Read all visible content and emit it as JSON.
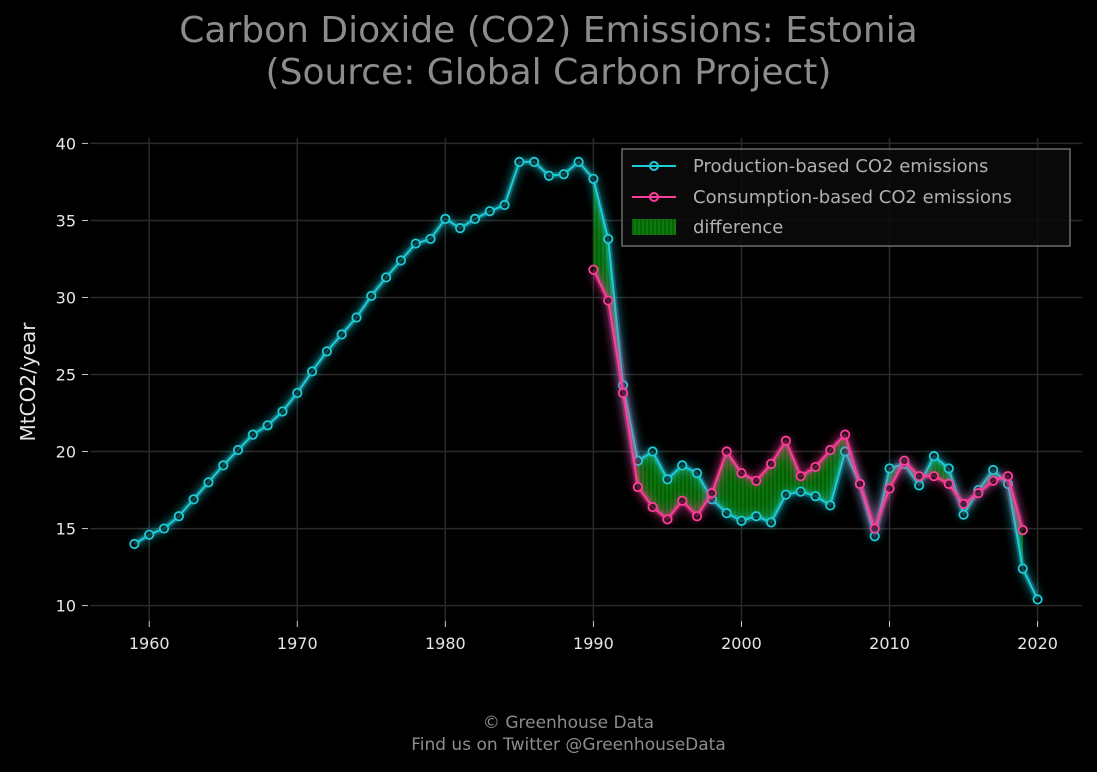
{
  "title": {
    "line1": "Carbon Dioxide (CO2) Emissions: Estonia",
    "line2": "(Source: Global Carbon Project)"
  },
  "footer": {
    "line1": "© Greenhouse Data",
    "line2": "Find us on Twitter @GreenhouseData"
  },
  "colors": {
    "background": "#000000",
    "production": "#1ecbd6",
    "consumption": "#ff3d9a",
    "difference": "#0a8c0a",
    "grid": "#2a2a2a",
    "text": "#e6e6e6",
    "title": "#8c8c8c"
  },
  "chart_data": {
    "type": "line",
    "title": "Carbon Dioxide (CO2) Emissions: Estonia\n(Source: Global Carbon Project)",
    "xlabel": "",
    "ylabel": "MtCO2/year",
    "xlim": [
      1956,
      2023
    ],
    "ylim": [
      9,
      41
    ],
    "grid": true,
    "legend_position": "top-right",
    "x_ticks": [
      "1960",
      "1970",
      "1980",
      "1990",
      "2000",
      "2010",
      "2020"
    ],
    "y_ticks": [
      "10",
      "15",
      "20",
      "25",
      "30",
      "35",
      "40"
    ],
    "legend": [
      {
        "label": "Production-based CO2 emissions",
        "kind": "line"
      },
      {
        "label": "Consumption-based CO2 emissions",
        "kind": "line"
      },
      {
        "label": "difference",
        "kind": "fill"
      }
    ],
    "series": [
      {
        "name": "Production-based CO2 emissions",
        "x": [
          1959,
          1960,
          1961,
          1962,
          1963,
          1964,
          1965,
          1966,
          1967,
          1968,
          1969,
          1970,
          1971,
          1972,
          1973,
          1974,
          1975,
          1976,
          1977,
          1978,
          1979,
          1980,
          1981,
          1982,
          1983,
          1984,
          1985,
          1986,
          1987,
          1988,
          1989,
          1990,
          1991,
          1992,
          1993,
          1994,
          1995,
          1996,
          1997,
          1998,
          1999,
          2000,
          2001,
          2002,
          2003,
          2004,
          2005,
          2006,
          2007,
          2008,
          2009,
          2010,
          2011,
          2012,
          2013,
          2014,
          2015,
          2016,
          2017,
          2018,
          2019,
          2020
        ],
        "values": [
          14.0,
          14.6,
          15.0,
          15.8,
          16.9,
          18.0,
          19.1,
          20.1,
          21.1,
          21.7,
          22.6,
          23.8,
          25.2,
          26.5,
          27.6,
          28.7,
          30.1,
          31.3,
          32.4,
          33.5,
          33.8,
          35.1,
          34.5,
          35.1,
          35.6,
          36.0,
          38.8,
          38.8,
          37.9,
          38.0,
          38.8,
          37.7,
          33.8,
          24.3,
          19.4,
          20.0,
          18.2,
          19.1,
          18.6,
          16.9,
          16.0,
          15.5,
          15.8,
          15.4,
          17.2,
          17.4,
          17.1,
          16.5,
          20.0,
          17.9,
          14.5,
          18.9,
          19.2,
          17.8,
          19.7,
          18.9,
          15.9,
          17.5,
          18.8,
          17.9,
          12.4,
          10.4
        ]
      },
      {
        "name": "Consumption-based CO2 emissions",
        "x": [
          1990,
          1991,
          1992,
          1993,
          1994,
          1995,
          1996,
          1997,
          1998,
          1999,
          2000,
          2001,
          2002,
          2003,
          2004,
          2005,
          2006,
          2007,
          2008,
          2009,
          2010,
          2011,
          2012,
          2013,
          2014,
          2015,
          2016,
          2017,
          2018,
          2019
        ],
        "values": [
          31.8,
          29.8,
          23.8,
          17.7,
          16.4,
          15.6,
          16.8,
          15.8,
          17.3,
          20.0,
          18.6,
          18.1,
          19.2,
          20.7,
          18.4,
          19.0,
          20.1,
          21.1,
          17.9,
          15.0,
          17.6,
          19.4,
          18.4,
          18.4,
          17.9,
          16.6,
          17.3,
          18.1,
          18.4,
          14.9
        ]
      }
    ]
  }
}
